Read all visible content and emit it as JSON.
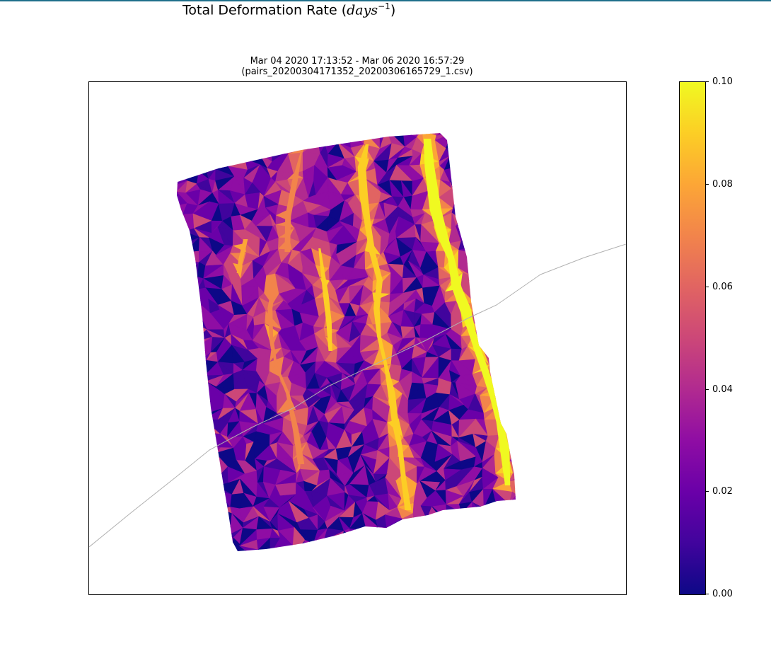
{
  "figure": {
    "title_text": "Total Deformation Rate (",
    "title_math": "days",
    "title_exp": "−1",
    "title_close": ")",
    "subtitle_line1": "Mar 04 2020 17:13:52 - Mar 06 2020 16:57:29",
    "subtitle_line2": "(pairs_20200304171352_20200306165729_1.csv)"
  },
  "colors": {
    "colormap": [
      "#0d0887",
      "#41049d",
      "#6a00a8",
      "#8f0da4",
      "#b12a90",
      "#cc4778",
      "#e16462",
      "#f2844b",
      "#fca636",
      "#fcce25",
      "#f0f921"
    ],
    "coastline": "#b0b0b0",
    "frame": "#000000"
  },
  "chart_data": {
    "type": "heatmap",
    "title": "",
    "xlabel": "",
    "ylabel": "",
    "colorbar": {
      "min": 0.0,
      "max": 0.1,
      "ticks": [
        "0.00",
        "0.02",
        "0.04",
        "0.06",
        "0.08",
        "0.10"
      ],
      "colormap": "plasma"
    },
    "grid": false,
    "legend": "none",
    "description_values": {
      "field": "total deformation rate",
      "dominant_range": [
        0.0,
        0.04
      ],
      "linear_features_max": 0.1,
      "linear_feature_count": 5
    }
  }
}
